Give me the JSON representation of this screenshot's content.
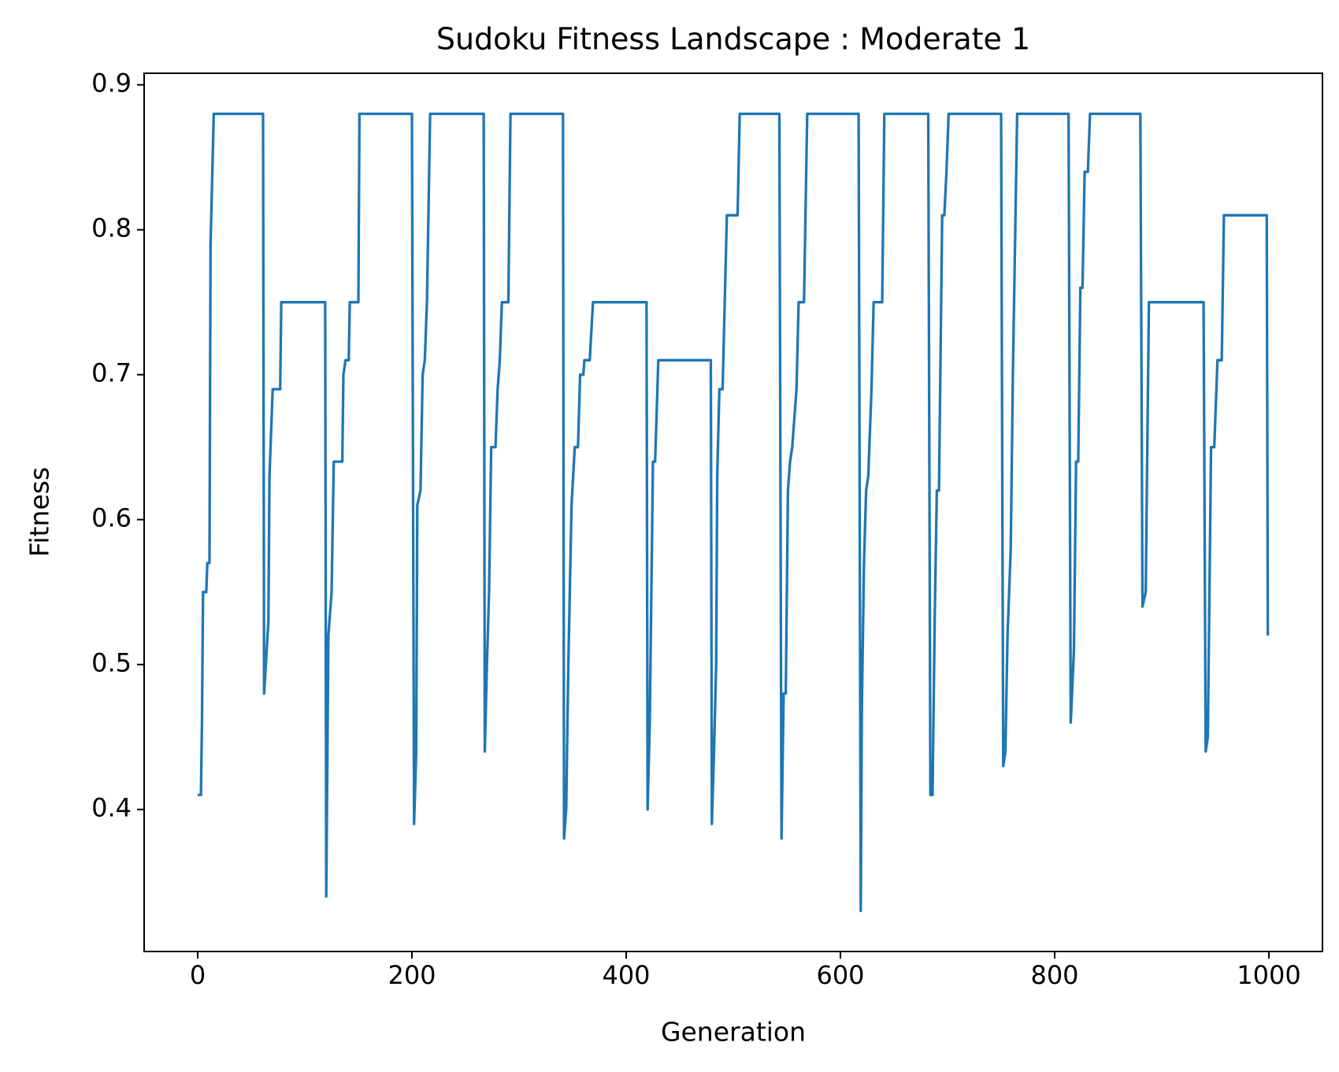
{
  "chart_data": {
    "type": "line",
    "title": "Sudoku Fitness Landscape : Moderate 1",
    "x_label": "Generation",
    "y_label": "Fitness",
    "x": [
      0,
      3,
      4,
      5,
      8,
      9,
      11,
      12,
      15,
      61,
      62,
      66,
      67,
      70,
      77,
      78,
      119,
      120,
      122,
      125,
      127,
      135,
      136,
      138,
      141,
      142,
      150,
      151,
      200,
      202,
      204,
      205,
      208,
      210,
      212,
      214,
      217,
      267,
      268,
      270,
      272,
      274,
      278,
      280,
      282,
      284,
      290,
      292,
      341,
      342,
      344,
      346,
      349,
      352,
      355,
      357,
      360,
      361,
      366,
      369,
      419,
      420,
      422,
      425,
      427,
      430,
      479,
      480,
      482,
      484,
      485,
      487,
      490,
      492,
      494,
      504,
      506,
      543,
      545,
      547,
      549,
      551,
      553,
      555,
      559,
      561,
      566,
      569,
      617,
      619,
      620,
      622,
      624,
      626,
      629,
      631,
      639,
      641,
      682,
      684,
      686,
      688,
      690,
      692,
      695,
      697,
      699,
      701,
      750,
      752,
      754,
      756,
      759,
      761,
      763,
      765,
      813,
      815,
      818,
      820,
      822,
      824,
      826,
      828,
      831,
      833,
      880,
      882,
      885,
      888,
      939,
      941,
      943,
      946,
      949,
      952,
      956,
      958,
      998,
      999
    ],
    "series": [
      {
        "name": "Fitness",
        "color": "#1f77b4",
        "values": [
          0.41,
          0.41,
          0.46,
          0.55,
          0.55,
          0.57,
          0.57,
          0.79,
          0.88,
          0.88,
          0.48,
          0.53,
          0.63,
          0.69,
          0.69,
          0.75,
          0.75,
          0.34,
          0.52,
          0.55,
          0.64,
          0.64,
          0.7,
          0.71,
          0.71,
          0.75,
          0.75,
          0.88,
          0.88,
          0.39,
          0.44,
          0.61,
          0.62,
          0.7,
          0.71,
          0.75,
          0.88,
          0.88,
          0.44,
          0.5,
          0.55,
          0.65,
          0.65,
          0.69,
          0.71,
          0.75,
          0.75,
          0.88,
          0.88,
          0.38,
          0.4,
          0.5,
          0.61,
          0.65,
          0.65,
          0.7,
          0.7,
          0.71,
          0.71,
          0.75,
          0.75,
          0.4,
          0.46,
          0.64,
          0.64,
          0.71,
          0.71,
          0.39,
          0.44,
          0.5,
          0.63,
          0.69,
          0.69,
          0.75,
          0.81,
          0.81,
          0.88,
          0.88,
          0.38,
          0.48,
          0.48,
          0.62,
          0.64,
          0.65,
          0.69,
          0.75,
          0.75,
          0.88,
          0.88,
          0.33,
          0.47,
          0.57,
          0.62,
          0.63,
          0.69,
          0.75,
          0.75,
          0.88,
          0.88,
          0.41,
          0.41,
          0.53,
          0.62,
          0.62,
          0.81,
          0.81,
          0.84,
          0.88,
          0.88,
          0.43,
          0.44,
          0.52,
          0.58,
          0.7,
          0.79,
          0.88,
          0.88,
          0.46,
          0.51,
          0.64,
          0.64,
          0.76,
          0.76,
          0.84,
          0.84,
          0.88,
          0.88,
          0.54,
          0.55,
          0.75,
          0.75,
          0.44,
          0.45,
          0.65,
          0.65,
          0.71,
          0.71,
          0.81,
          0.81,
          0.52
        ]
      }
    ],
    "xlim": [
      -50,
      1050
    ],
    "ylim": [
      0.302,
      0.908
    ],
    "xticks": [
      0,
      200,
      400,
      600,
      800,
      1000
    ],
    "yticks": [
      0.4,
      0.5,
      0.6,
      0.7,
      0.8,
      0.9
    ],
    "grid": false
  }
}
